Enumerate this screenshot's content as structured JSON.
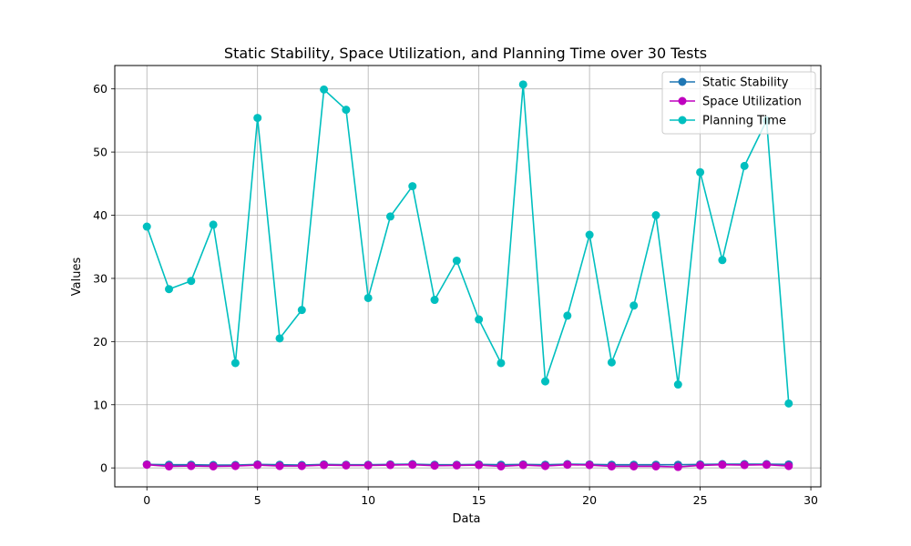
{
  "chart_data": {
    "type": "line",
    "title": "Static Stability, Space Utilization, and Planning Time over 30 Tests",
    "xlabel": "Data",
    "ylabel": "Values",
    "xlim": [
      -1.45,
      30.45
    ],
    "ylim": [
      -3.0,
      63.7
    ],
    "xticks": [
      0,
      5,
      10,
      15,
      20,
      25,
      30
    ],
    "yticks": [
      0,
      10,
      20,
      30,
      40,
      50,
      60
    ],
    "grid": true,
    "legend_position": "top-right",
    "x": [
      0,
      1,
      2,
      3,
      4,
      5,
      6,
      7,
      8,
      9,
      10,
      11,
      12,
      13,
      14,
      15,
      16,
      17,
      18,
      19,
      20,
      21,
      22,
      23,
      24,
      25,
      26,
      27,
      28,
      29
    ],
    "series": [
      {
        "name": "Static Stability",
        "color": "#1f77b4",
        "values": [
          0.55,
          0.5,
          0.5,
          0.45,
          0.45,
          0.55,
          0.5,
          0.45,
          0.55,
          0.5,
          0.5,
          0.55,
          0.6,
          0.5,
          0.5,
          0.55,
          0.5,
          0.55,
          0.5,
          0.6,
          0.55,
          0.5,
          0.5,
          0.5,
          0.5,
          0.55,
          0.6,
          0.6,
          0.6,
          0.55
        ]
      },
      {
        "name": "Space Utilization",
        "color": "#bf00bf",
        "values": [
          0.5,
          0.25,
          0.3,
          0.25,
          0.3,
          0.45,
          0.3,
          0.3,
          0.45,
          0.4,
          0.4,
          0.45,
          0.5,
          0.35,
          0.4,
          0.45,
          0.25,
          0.45,
          0.3,
          0.5,
          0.45,
          0.25,
          0.25,
          0.25,
          0.15,
          0.4,
          0.5,
          0.45,
          0.5,
          0.3
        ]
      },
      {
        "name": "Planning Time",
        "color": "#00bfbf",
        "values": [
          38.2,
          28.3,
          29.6,
          38.5,
          16.6,
          55.4,
          20.5,
          25.0,
          59.9,
          56.7,
          26.9,
          39.8,
          44.6,
          26.6,
          32.8,
          23.5,
          16.6,
          60.7,
          13.7,
          24.1,
          36.9,
          16.7,
          25.7,
          40.0,
          13.2,
          46.8,
          32.9,
          47.8,
          55.0,
          10.2
        ]
      }
    ]
  }
}
